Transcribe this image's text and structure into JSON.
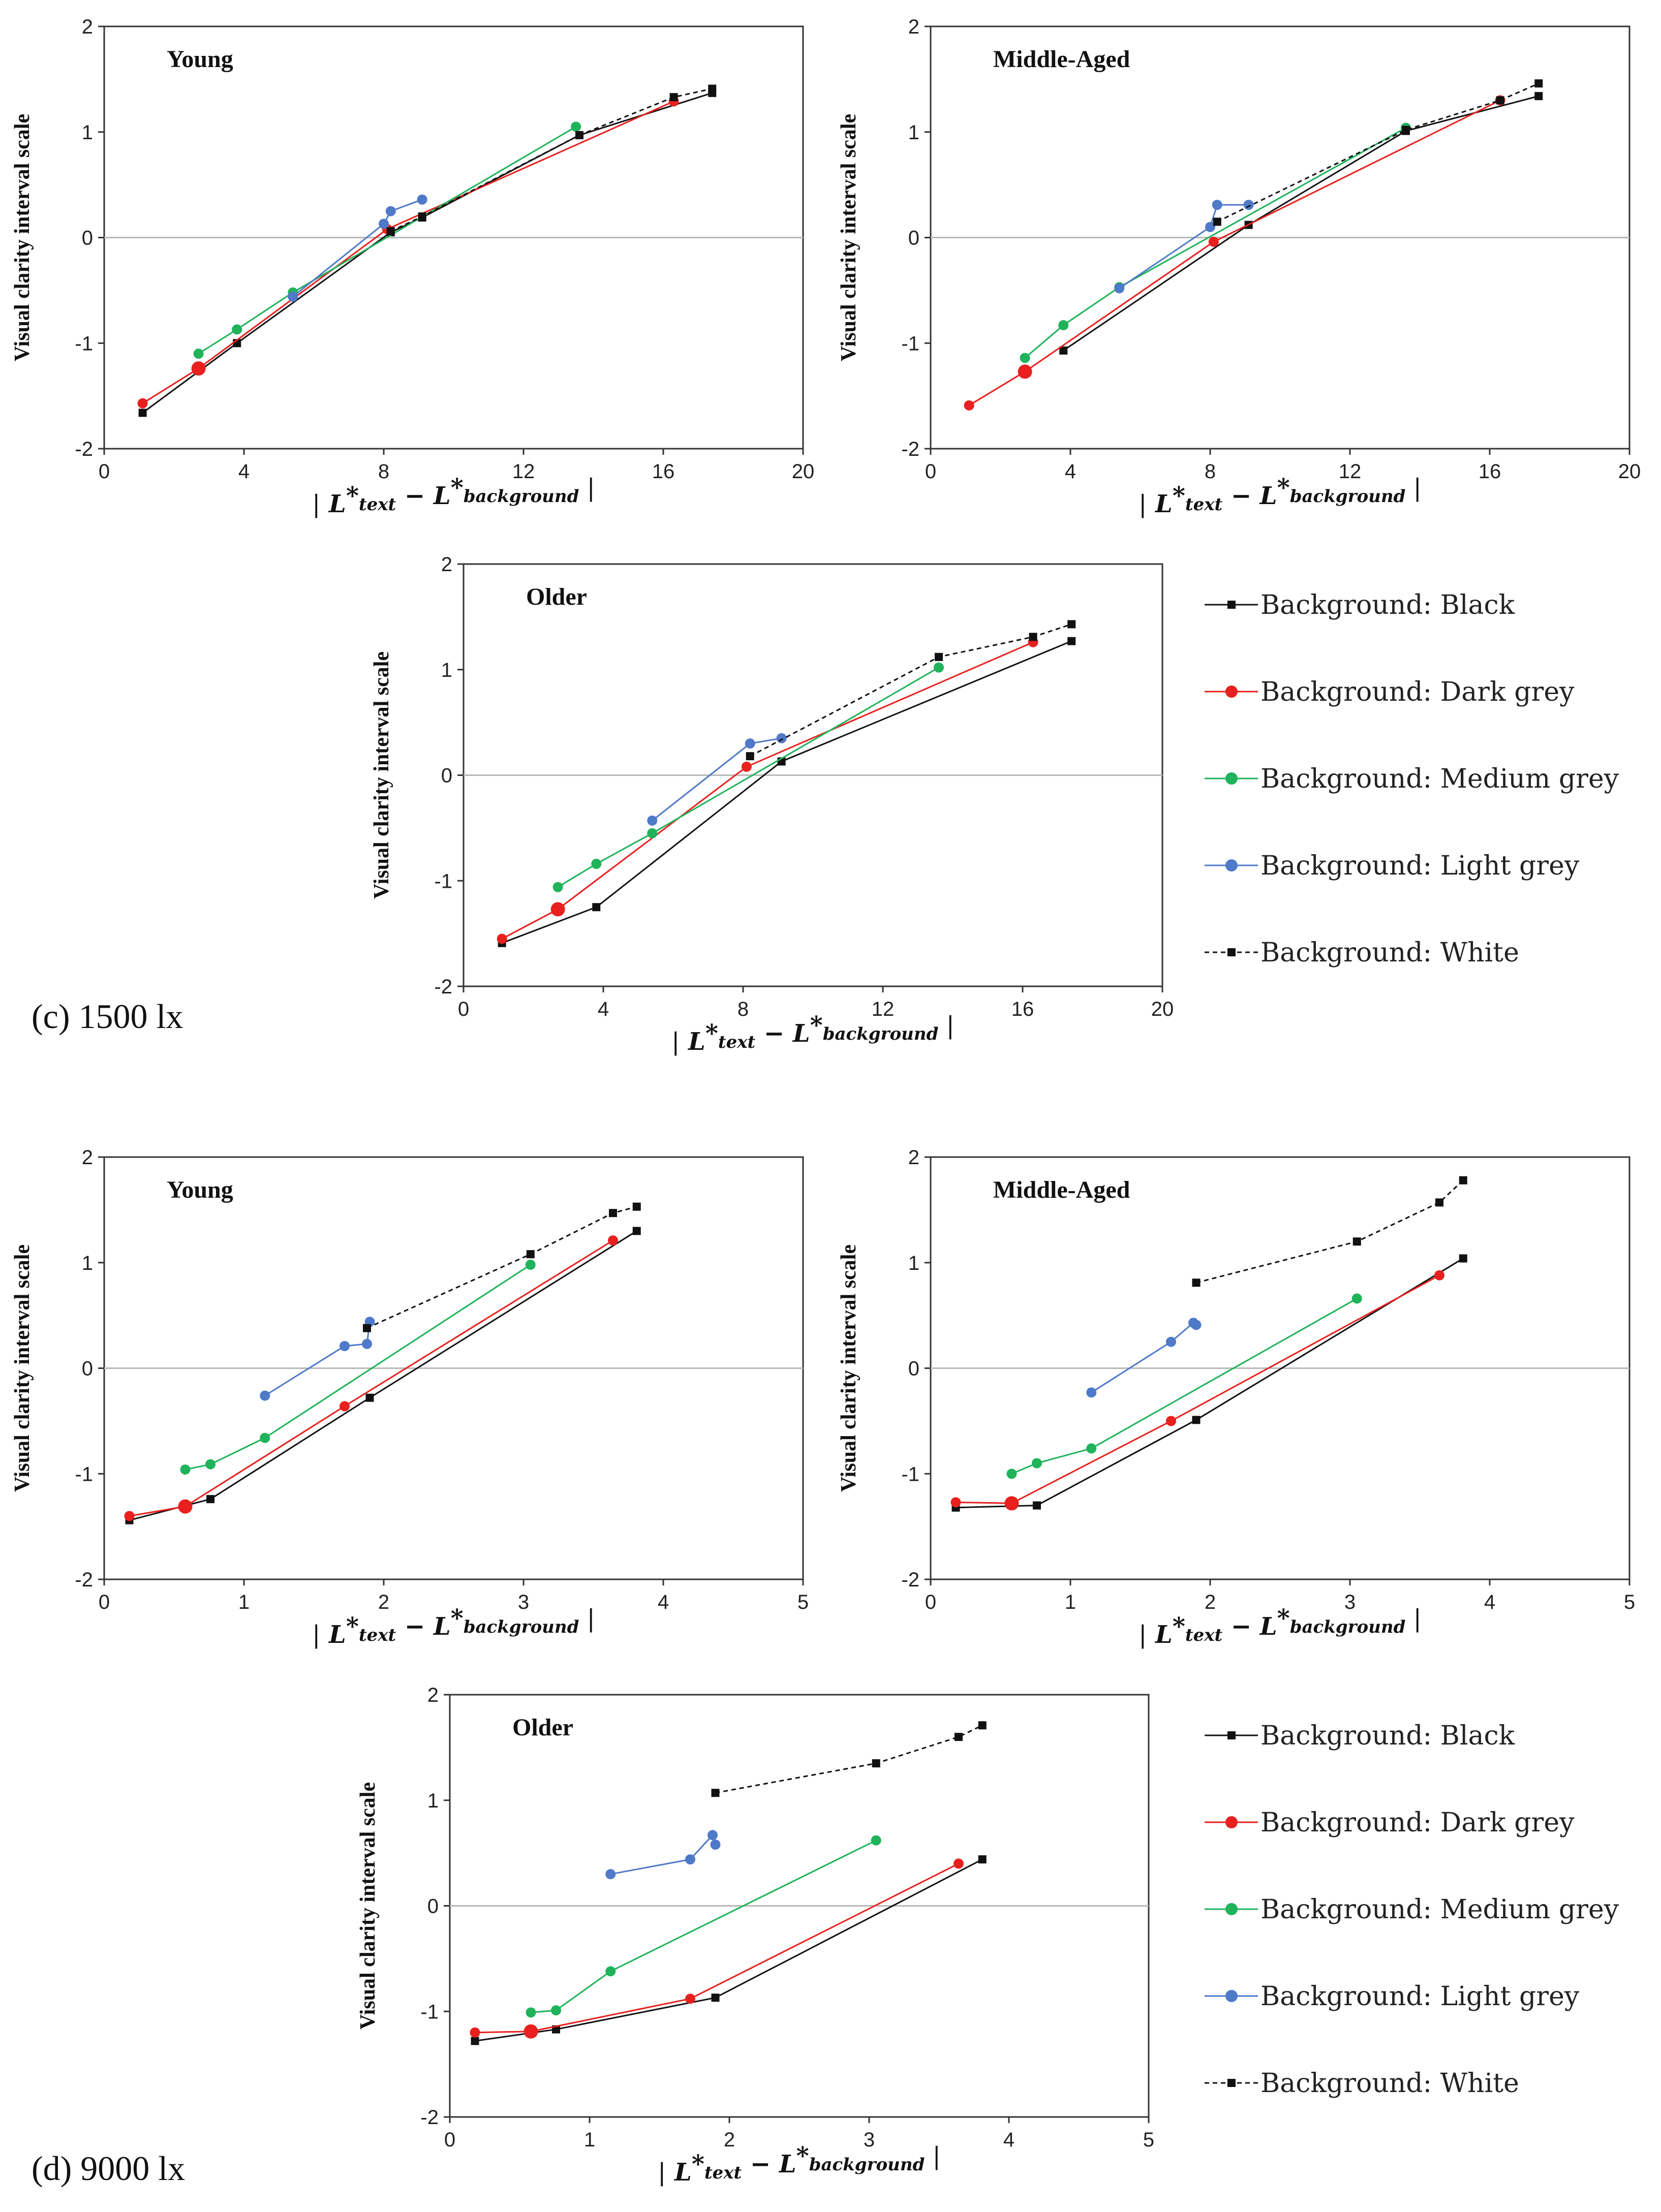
{
  "colors": {
    "Black": "#111111",
    "Dark grey": "#e8201e",
    "Medium grey": "#1fb35a",
    "Light grey": "#4f79c9",
    "White": "#111111"
  },
  "figure_labels": {
    "c": "(c) 1500 lx",
    "d": "(d) 9000 lx"
  },
  "legend": [
    {
      "label": "Background: Black",
      "series": "Black"
    },
    {
      "label": "Background: Dark grey",
      "series": "Dark grey"
    },
    {
      "label": "Background: Medium grey",
      "series": "Medium grey"
    },
    {
      "label": "Background: Light grey",
      "series": "Light grey"
    },
    {
      "label": "Background: White",
      "series": "White"
    }
  ],
  "chart_data": [
    {
      "type": "line",
      "title": "Young",
      "group": "1500 lx",
      "ylabel": "Visual clarity interval scale",
      "xlim": [
        0,
        20
      ],
      "xticks": [
        0,
        4,
        8,
        12,
        16,
        20
      ],
      "ylim": [
        -2,
        2
      ],
      "yticks": [
        -2,
        -1,
        0,
        1,
        2
      ],
      "series": [
        {
          "name": "Black",
          "marker": "square",
          "dashed": false,
          "points": [
            [
              1.1,
              -1.66
            ],
            [
              3.8,
              -1.0
            ],
            [
              8.2,
              0.05
            ],
            [
              9.1,
              0.19
            ],
            [
              13.6,
              0.97
            ],
            [
              17.4,
              1.37
            ]
          ]
        },
        {
          "name": "Dark grey",
          "marker": "circle",
          "dashed": false,
          "points": [
            [
              1.1,
              -1.57
            ],
            [
              2.7,
              -1.24
            ],
            [
              8.1,
              0.08
            ],
            [
              16.3,
              1.29
            ]
          ]
        },
        {
          "name": "Medium grey",
          "marker": "circle",
          "dashed": false,
          "points": [
            [
              2.7,
              -1.1
            ],
            [
              3.8,
              -0.87
            ],
            [
              5.4,
              -0.52
            ],
            [
              13.5,
              1.05
            ]
          ]
        },
        {
          "name": "Light grey",
          "marker": "circle",
          "dashed": false,
          "points": [
            [
              5.4,
              -0.56
            ],
            [
              8.0,
              0.13
            ],
            [
              8.2,
              0.25
            ],
            [
              9.1,
              0.36
            ]
          ]
        },
        {
          "name": "White",
          "marker": "square",
          "dashed": true,
          "points": [
            [
              8.2,
              0.06
            ],
            [
              9.1,
              0.2
            ],
            [
              13.6,
              0.97
            ],
            [
              16.3,
              1.33
            ],
            [
              17.4,
              1.41
            ]
          ]
        }
      ]
    },
    {
      "type": "line",
      "title": "Middle-Aged",
      "group": "1500 lx",
      "ylabel": "Visual clarity interval scale",
      "xlim": [
        0,
        20
      ],
      "xticks": [
        0,
        4,
        8,
        12,
        16,
        20
      ],
      "ylim": [
        -2,
        2
      ],
      "yticks": [
        -2,
        -1,
        0,
        1,
        2
      ],
      "series": [
        {
          "name": "Black",
          "marker": "square",
          "dashed": false,
          "points": [
            [
              3.8,
              -1.07
            ],
            [
              9.1,
              0.12
            ],
            [
              13.6,
              1.01
            ],
            [
              17.4,
              1.34
            ]
          ]
        },
        {
          "name": "Dark grey",
          "marker": "circle",
          "dashed": false,
          "points": [
            [
              1.1,
              -1.59
            ],
            [
              2.7,
              -1.27
            ],
            [
              8.1,
              -0.04
            ],
            [
              16.3,
              1.3
            ]
          ]
        },
        {
          "name": "Medium grey",
          "marker": "circle",
          "dashed": false,
          "points": [
            [
              2.7,
              -1.14
            ],
            [
              3.8,
              -0.83
            ],
            [
              5.4,
              -0.47
            ],
            [
              13.6,
              1.04
            ]
          ]
        },
        {
          "name": "Light grey",
          "marker": "circle",
          "dashed": false,
          "points": [
            [
              5.4,
              -0.48
            ],
            [
              8.0,
              0.1
            ],
            [
              8.2,
              0.31
            ],
            [
              9.1,
              0.31
            ]
          ]
        },
        {
          "name": "White",
          "marker": "square",
          "dashed": true,
          "points": [
            [
              8.2,
              0.15
            ],
            [
              13.6,
              1.02
            ],
            [
              16.3,
              1.3
            ],
            [
              17.4,
              1.46
            ]
          ]
        }
      ]
    },
    {
      "type": "line",
      "title": "Older",
      "group": "1500 lx",
      "ylabel": "Visual clarity interval scale",
      "xlim": [
        0,
        20
      ],
      "xticks": [
        0,
        4,
        8,
        12,
        16,
        20
      ],
      "ylim": [
        -2,
        2
      ],
      "yticks": [
        -2,
        -1,
        0,
        1,
        2
      ],
      "series": [
        {
          "name": "Black",
          "marker": "square",
          "dashed": false,
          "points": [
            [
              1.1,
              -1.59
            ],
            [
              3.8,
              -1.25
            ],
            [
              9.1,
              0.13
            ],
            [
              17.4,
              1.27
            ]
          ]
        },
        {
          "name": "Dark grey",
          "marker": "circle",
          "dashed": false,
          "points": [
            [
              1.1,
              -1.55
            ],
            [
              2.7,
              -1.27
            ],
            [
              8.1,
              0.08
            ],
            [
              16.3,
              1.26
            ]
          ]
        },
        {
          "name": "Medium grey",
          "marker": "circle",
          "dashed": false,
          "points": [
            [
              2.7,
              -1.06
            ],
            [
              3.8,
              -0.84
            ],
            [
              5.4,
              -0.55
            ],
            [
              13.6,
              1.02
            ]
          ]
        },
        {
          "name": "Light grey",
          "marker": "circle",
          "dashed": false,
          "points": [
            [
              5.4,
              -0.43
            ],
            [
              8.2,
              0.3
            ],
            [
              9.1,
              0.35
            ]
          ]
        },
        {
          "name": "White",
          "marker": "square",
          "dashed": true,
          "points": [
            [
              8.2,
              0.18
            ],
            [
              13.6,
              1.12
            ],
            [
              16.3,
              1.31
            ],
            [
              17.4,
              1.43
            ]
          ]
        }
      ]
    },
    {
      "type": "line",
      "title": "Young",
      "group": "9000 lx",
      "ylabel": "Visual clarity interval scale",
      "xlim": [
        0,
        5
      ],
      "xticks": [
        0,
        1,
        2,
        3,
        4,
        5
      ],
      "ylim": [
        -2,
        2
      ],
      "yticks": [
        -2,
        -1,
        0,
        1,
        2
      ],
      "series": [
        {
          "name": "Black",
          "marker": "square",
          "dashed": false,
          "points": [
            [
              0.18,
              -1.44
            ],
            [
              0.76,
              -1.24
            ],
            [
              1.9,
              -0.28
            ],
            [
              3.81,
              1.3
            ]
          ]
        },
        {
          "name": "Dark grey",
          "marker": "circle",
          "dashed": false,
          "points": [
            [
              0.18,
              -1.4
            ],
            [
              0.58,
              -1.31
            ],
            [
              1.72,
              -0.36
            ],
            [
              3.64,
              1.21
            ]
          ]
        },
        {
          "name": "Medium grey",
          "marker": "circle",
          "dashed": false,
          "points": [
            [
              0.58,
              -0.96
            ],
            [
              0.76,
              -0.91
            ],
            [
              1.15,
              -0.66
            ],
            [
              3.05,
              0.98
            ]
          ]
        },
        {
          "name": "Light grey",
          "marker": "circle",
          "dashed": false,
          "points": [
            [
              1.15,
              -0.26
            ],
            [
              1.72,
              0.21
            ],
            [
              1.88,
              0.23
            ],
            [
              1.9,
              0.44
            ]
          ]
        },
        {
          "name": "White",
          "marker": "square",
          "dashed": true,
          "points": [
            [
              1.88,
              0.38
            ],
            [
              3.05,
              1.08
            ],
            [
              3.64,
              1.47
            ],
            [
              3.81,
              1.53
            ]
          ]
        }
      ]
    },
    {
      "type": "line",
      "title": "Middle-Aged",
      "group": "9000 lx",
      "ylabel": "Visual clarity interval scale",
      "xlim": [
        0,
        5
      ],
      "xticks": [
        0,
        1,
        2,
        3,
        4,
        5
      ],
      "ylim": [
        -2,
        2
      ],
      "yticks": [
        -2,
        -1,
        0,
        1,
        2
      ],
      "series": [
        {
          "name": "Black",
          "marker": "square",
          "dashed": false,
          "points": [
            [
              0.18,
              -1.32
            ],
            [
              0.76,
              -1.3
            ],
            [
              1.9,
              -0.49
            ],
            [
              3.81,
              1.04
            ]
          ]
        },
        {
          "name": "Dark grey",
          "marker": "circle",
          "dashed": false,
          "points": [
            [
              0.18,
              -1.27
            ],
            [
              0.58,
              -1.28
            ],
            [
              1.72,
              -0.5
            ],
            [
              3.64,
              0.88
            ]
          ]
        },
        {
          "name": "Medium grey",
          "marker": "circle",
          "dashed": false,
          "points": [
            [
              0.58,
              -1.0
            ],
            [
              0.76,
              -0.9
            ],
            [
              1.15,
              -0.76
            ],
            [
              3.05,
              0.66
            ]
          ]
        },
        {
          "name": "Light grey",
          "marker": "circle",
          "dashed": false,
          "points": [
            [
              1.15,
              -0.23
            ],
            [
              1.72,
              0.25
            ],
            [
              1.88,
              0.43
            ],
            [
              1.9,
              0.41
            ]
          ]
        },
        {
          "name": "White",
          "marker": "square",
          "dashed": true,
          "points": [
            [
              1.9,
              0.81
            ],
            [
              3.05,
              1.2
            ],
            [
              3.64,
              1.57
            ],
            [
              3.81,
              1.78
            ]
          ]
        }
      ]
    },
    {
      "type": "line",
      "title": "Older",
      "group": "9000 lx",
      "ylabel": "Visual clarity interval scale",
      "xlim": [
        0,
        5
      ],
      "xticks": [
        0,
        1,
        2,
        3,
        4,
        5
      ],
      "ylim": [
        -2,
        2
      ],
      "yticks": [
        -2,
        -1,
        0,
        1,
        2
      ],
      "series": [
        {
          "name": "Black",
          "marker": "square",
          "dashed": false,
          "points": [
            [
              0.18,
              -1.28
            ],
            [
              0.76,
              -1.17
            ],
            [
              1.9,
              -0.87
            ],
            [
              3.81,
              0.44
            ]
          ]
        },
        {
          "name": "Dark grey",
          "marker": "circle",
          "dashed": false,
          "points": [
            [
              0.18,
              -1.2
            ],
            [
              0.58,
              -1.19
            ],
            [
              1.72,
              -0.88
            ],
            [
              3.64,
              0.4
            ]
          ]
        },
        {
          "name": "Medium grey",
          "marker": "circle",
          "dashed": false,
          "points": [
            [
              0.58,
              -1.01
            ],
            [
              0.76,
              -0.99
            ],
            [
              1.15,
              -0.62
            ],
            [
              3.05,
              0.62
            ]
          ]
        },
        {
          "name": "Light grey",
          "marker": "circle",
          "dashed": false,
          "points": [
            [
              1.15,
              0.3
            ],
            [
              1.72,
              0.44
            ],
            [
              1.88,
              0.67
            ],
            [
              1.9,
              0.58
            ]
          ]
        },
        {
          "name": "White",
          "marker": "square",
          "dashed": true,
          "points": [
            [
              1.9,
              1.07
            ],
            [
              3.05,
              1.35
            ],
            [
              3.64,
              1.6
            ],
            [
              3.81,
              1.71
            ]
          ]
        }
      ]
    }
  ]
}
